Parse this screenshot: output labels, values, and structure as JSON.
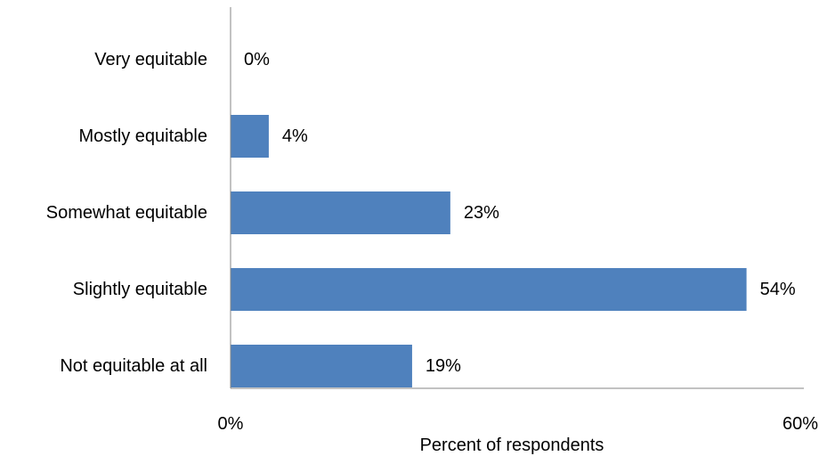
{
  "colors": {
    "bar": "#4f81bd",
    "axis": "#868686",
    "text": "#000000"
  },
  "chart_data": {
    "type": "bar",
    "orientation": "horizontal",
    "title": "",
    "categories": [
      "Very equitable",
      "Mostly equitable",
      "Somewhat equitable",
      "Slightly equitable",
      "Not equitable at all"
    ],
    "values": [
      0,
      4,
      23,
      54,
      19
    ],
    "data_labels": [
      "0%",
      "4%",
      "23%",
      "54%",
      "19%"
    ],
    "xlabel": "Percent of respondents",
    "ylabel": "",
    "xlim": [
      0,
      60
    ],
    "x_tick_labels": [
      "0%",
      "60%"
    ],
    "grid": false,
    "legend": "none"
  }
}
